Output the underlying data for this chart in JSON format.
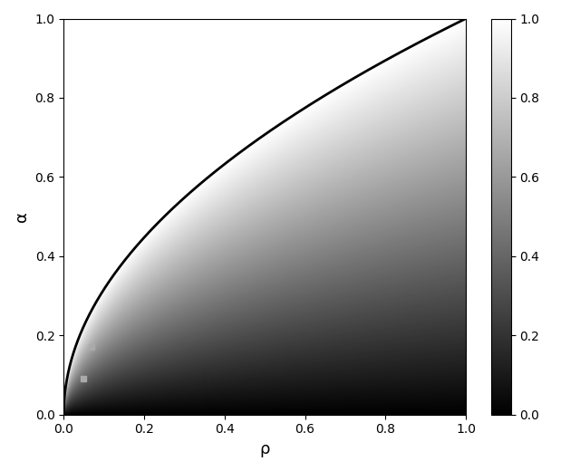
{
  "xlim": [
    0.0,
    1.0
  ],
  "ylim": [
    0.0,
    1.0
  ],
  "xlabel": "ρ",
  "ylabel": "α",
  "xlabel_fontsize": 13,
  "ylabel_fontsize": 13,
  "cmap": "gray",
  "colorbar_ticks": [
    0.0,
    0.2,
    0.4,
    0.6,
    0.8,
    1.0
  ],
  "curve_color": "black",
  "curve_linewidth": 2.0,
  "marker_points": [
    [
      0.05,
      0.09
    ],
    [
      0.07,
      0.17
    ]
  ],
  "marker_color": "#aaaaaa",
  "marker_size": 5,
  "n_grid": 600,
  "figsize": [
    6.4,
    5.2
  ],
  "dpi": 100
}
